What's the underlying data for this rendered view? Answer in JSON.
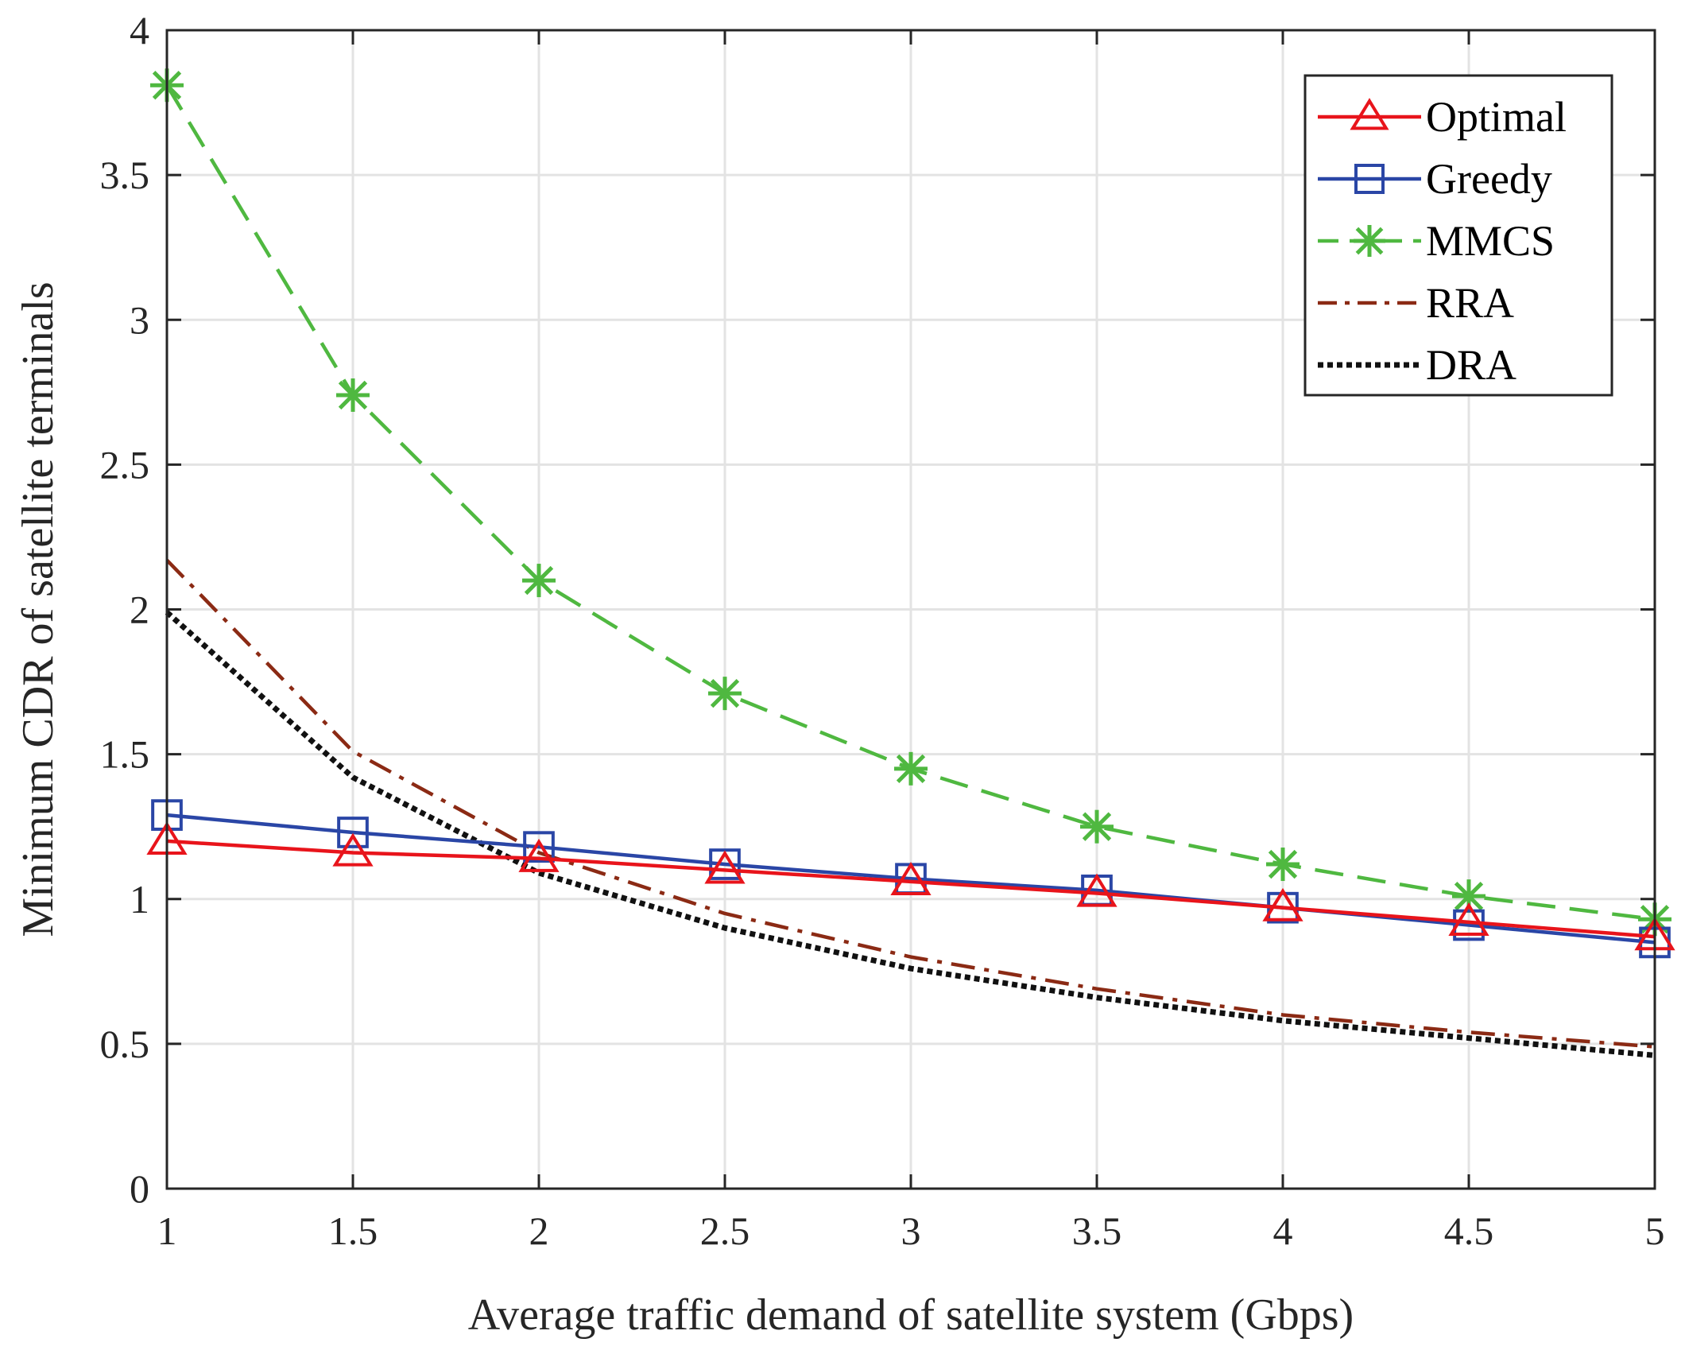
{
  "chart_data": {
    "type": "line",
    "title": "",
    "xlabel": "Average traffic demand of satellite system (Gbps)",
    "ylabel": "Minimum CDR of satellite terminals",
    "xlim": [
      1,
      5
    ],
    "ylim": [
      0,
      4
    ],
    "x_ticks": [
      1,
      1.5,
      2,
      2.5,
      3,
      3.5,
      4,
      4.5,
      5
    ],
    "x_tick_labels": [
      "1",
      "1.5",
      "2",
      "2.5",
      "3",
      "3.5",
      "4",
      "4.5",
      "5"
    ],
    "y_ticks": [
      0,
      0.5,
      1,
      1.5,
      2,
      2.5,
      3,
      3.5,
      4
    ],
    "y_tick_labels": [
      "0",
      "0.5",
      "1",
      "1.5",
      "2",
      "2.5",
      "3",
      "3.5",
      "4"
    ],
    "grid": true,
    "legend_position": "top-right",
    "x": [
      1,
      1.5,
      2,
      2.5,
      3,
      3.5,
      4,
      4.5,
      5
    ],
    "series": [
      {
        "name": "Optimal",
        "color": "#e8141b",
        "line": "solid",
        "marker": "triangle",
        "values": [
          1.2,
          1.16,
          1.14,
          1.1,
          1.06,
          1.02,
          0.97,
          0.92,
          0.87
        ]
      },
      {
        "name": "Greedy",
        "color": "#2a46a6",
        "line": "solid",
        "marker": "square",
        "values": [
          1.29,
          1.23,
          1.18,
          1.12,
          1.07,
          1.03,
          0.97,
          0.91,
          0.85
        ]
      },
      {
        "name": "MMCS",
        "color": "#4fb840",
        "line": "dashed",
        "marker": "asterisk",
        "values": [
          3.81,
          2.74,
          2.1,
          1.71,
          1.45,
          1.25,
          1.12,
          1.01,
          0.93
        ]
      },
      {
        "name": "RRA",
        "color": "#8b2a14",
        "line": "dashdot",
        "marker": "none",
        "values": [
          2.17,
          1.51,
          1.16,
          0.95,
          0.8,
          0.69,
          0.6,
          0.54,
          0.49
        ]
      },
      {
        "name": "DRA",
        "color": "#111111",
        "line": "dotted",
        "marker": "none",
        "values": [
          1.99,
          1.42,
          1.09,
          0.9,
          0.76,
          0.66,
          0.58,
          0.52,
          0.46
        ]
      }
    ]
  }
}
